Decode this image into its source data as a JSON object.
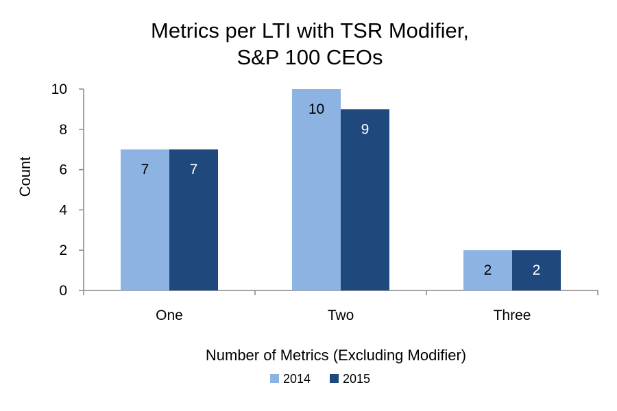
{
  "chart_data": {
    "type": "bar",
    "title_lines": [
      "Metrics per LTI with TSR Modifier,",
      "S&P 100 CEOs"
    ],
    "xlabel": "Number of Metrics (Excluding Modifier)",
    "ylabel": "Count",
    "categories": [
      "One",
      "Two",
      "Three"
    ],
    "ylim": [
      0,
      10
    ],
    "yticks": [
      0,
      2,
      4,
      6,
      8,
      10
    ],
    "grid": false,
    "legend_position": "bottom",
    "series": [
      {
        "name": "2014",
        "values": [
          7,
          10,
          2
        ],
        "color": "#8DB3E2",
        "label_color": "#000000"
      },
      {
        "name": "2015",
        "values": [
          7,
          9,
          2
        ],
        "color": "#1F497D",
        "label_color": "#ffffff"
      }
    ]
  }
}
